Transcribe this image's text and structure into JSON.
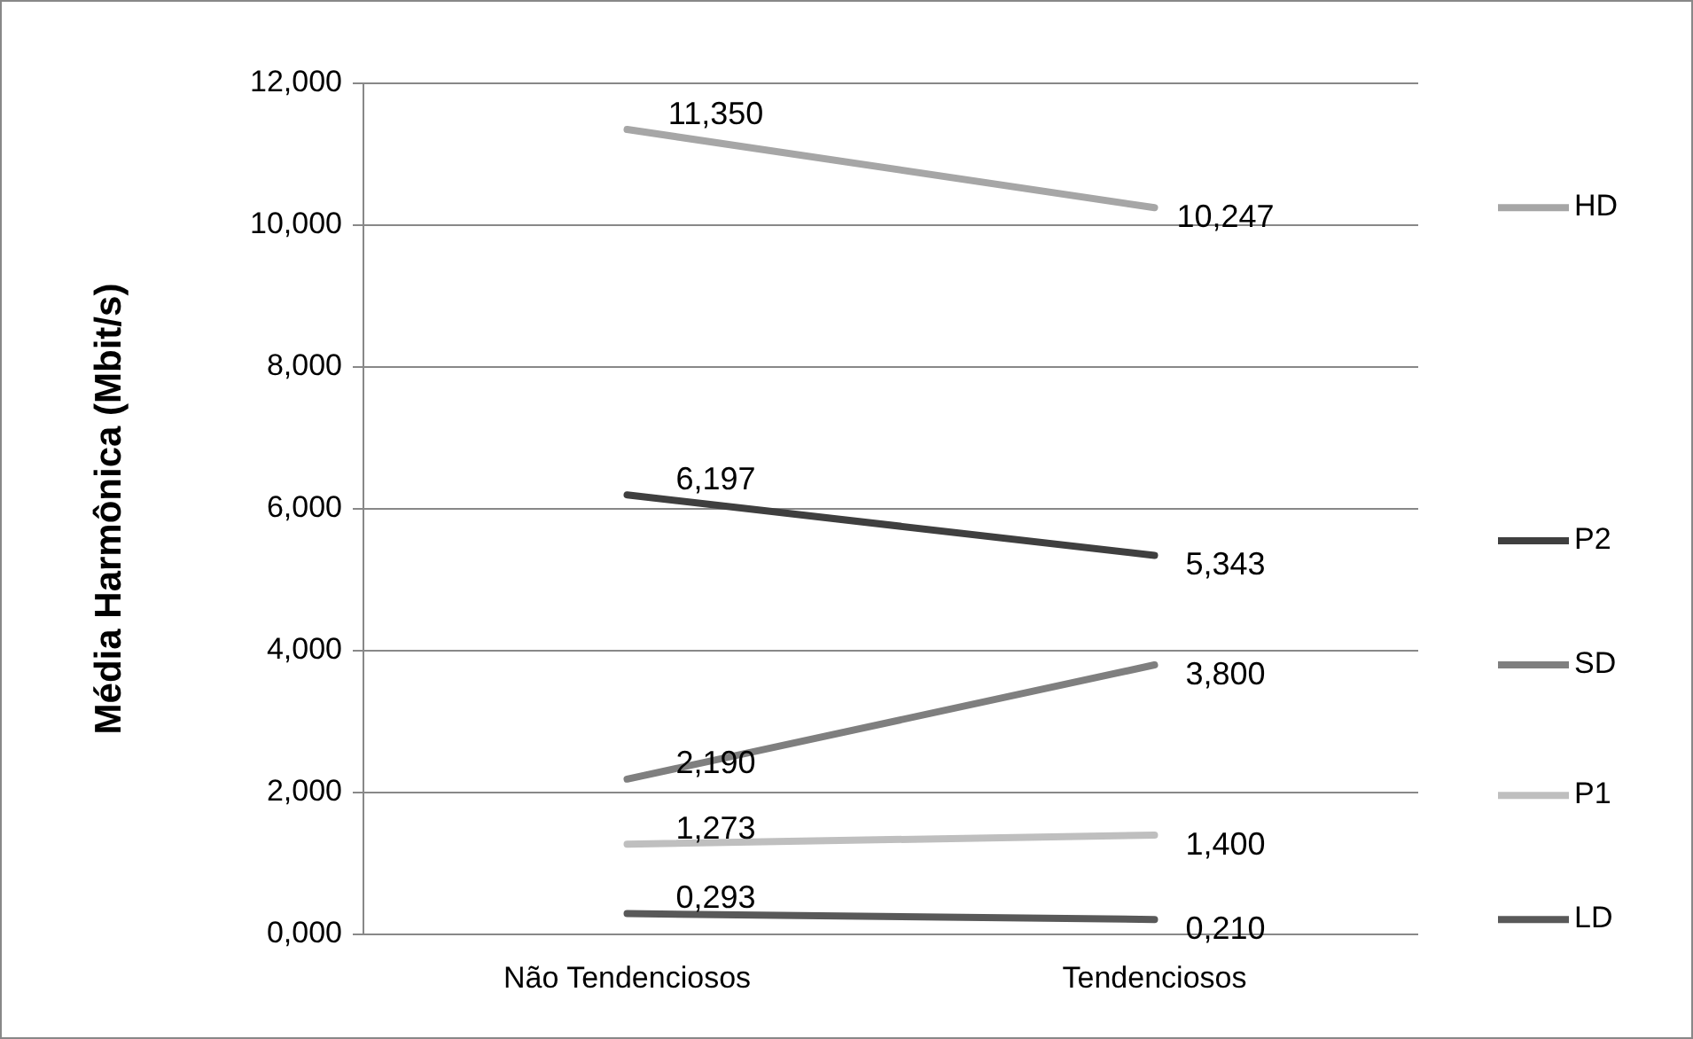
{
  "chart_data": {
    "type": "line",
    "ylabel": "Média Harmônica (Mbit/s)",
    "categories": [
      "Não Tendenciosos",
      "Tendenciosos"
    ],
    "series": [
      {
        "name": "HD",
        "color": "#a6a6a6",
        "values": [
          11.35,
          10.247
        ],
        "value_labels": [
          "11,350",
          "10,247"
        ]
      },
      {
        "name": "P2",
        "color": "#3f3f3f",
        "values": [
          6.197,
          5.343
        ],
        "value_labels": [
          "6,197",
          "5,343"
        ]
      },
      {
        "name": "SD",
        "color": "#7f7f7f",
        "values": [
          2.19,
          3.8
        ],
        "value_labels": [
          "2,190",
          "3,800"
        ]
      },
      {
        "name": "P1",
        "color": "#bfbfbf",
        "values": [
          1.273,
          1.4
        ],
        "value_labels": [
          "1,273",
          "1,400"
        ]
      },
      {
        "name": "LD",
        "color": "#595959",
        "values": [
          0.293,
          0.21
        ],
        "value_labels": [
          "0,293",
          "0,210"
        ]
      }
    ],
    "ylim": [
      0,
      12
    ],
    "yticks": [
      {
        "value": 0,
        "label": "0,000"
      },
      {
        "value": 2,
        "label": "2,000"
      },
      {
        "value": 4,
        "label": "4,000"
      },
      {
        "value": 6,
        "label": "6,000"
      },
      {
        "value": 8,
        "label": "8,000"
      },
      {
        "value": 10,
        "label": "10,000"
      },
      {
        "value": 12,
        "label": "12,000"
      }
    ],
    "grid": "y",
    "legend": "right",
    "marker": "none",
    "line_style": "solid"
  }
}
